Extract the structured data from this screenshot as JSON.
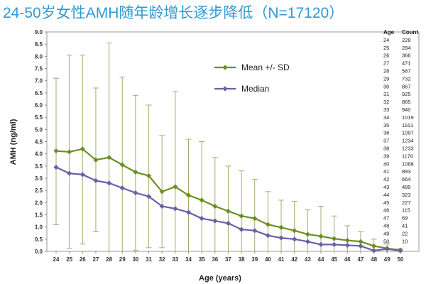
{
  "title": "24-50岁女性AMH随年龄增长逐步降低（N=17120）",
  "chart_data": {
    "type": "line",
    "xlabel": "Age (years)",
    "ylabel": "AMH (ng/ml)",
    "ylim": [
      0,
      9
    ],
    "yticks": [
      "0.0",
      "0.5",
      "1.0",
      "1.5",
      "2.0",
      "2.5",
      "3.0",
      "3.5",
      "4.0",
      "4.5",
      "5.0",
      "5.5",
      "6.0",
      "6.5",
      "7.0",
      "7.5",
      "8.0",
      "8.5",
      "9.0"
    ],
    "x": [
      24,
      25,
      26,
      27,
      28,
      29,
      30,
      31,
      32,
      33,
      34,
      35,
      36,
      37,
      38,
      39,
      40,
      41,
      42,
      43,
      44,
      45,
      46,
      47,
      48,
      49,
      50
    ],
    "series": [
      {
        "name": "Mean +/- SD",
        "color": "#6b8f23",
        "marker": "diamond",
        "values": [
          4.12,
          4.08,
          4.2,
          3.75,
          3.85,
          3.55,
          3.25,
          3.1,
          2.45,
          2.65,
          2.3,
          2.1,
          1.85,
          1.65,
          1.45,
          1.35,
          1.1,
          0.98,
          0.85,
          0.7,
          0.62,
          0.52,
          0.45,
          0.4,
          0.22,
          0.12,
          0.05
        ],
        "sd_upper": [
          7.1,
          8.05,
          8.05,
          6.7,
          8.55,
          7.15,
          6.4,
          6.0,
          4.75,
          6.55,
          4.6,
          4.5,
          3.85,
          3.5,
          3.3,
          2.95,
          2.45,
          2.1,
          2.05,
          1.7,
          1.85,
          1.45,
          1.05,
          0.8,
          0.5,
          0.3,
          0.12
        ],
        "sd_lower": [
          1.1,
          0.12,
          0.3,
          0.8,
          0.0,
          0.0,
          0.05,
          0.15,
          0.15,
          0.0,
          0.0,
          0.0,
          0.0,
          0.0,
          0.0,
          0.0,
          0.0,
          0.0,
          0.0,
          0.0,
          0.0,
          0.0,
          0.0,
          0.0,
          0.0,
          0.0,
          0.0
        ]
      },
      {
        "name": "Median",
        "color": "#6a5fa8",
        "marker": "diamond",
        "values": [
          3.45,
          3.2,
          3.15,
          2.9,
          2.8,
          2.6,
          2.4,
          2.25,
          1.85,
          1.75,
          1.6,
          1.35,
          1.25,
          1.15,
          0.9,
          0.85,
          0.65,
          0.55,
          0.5,
          0.4,
          0.28,
          0.28,
          0.25,
          0.22,
          0.03,
          0.1,
          0.02
        ]
      }
    ],
    "legend": "upper-center",
    "grid": false
  },
  "count_table": {
    "headers": [
      "Age",
      "Count"
    ],
    "rows": [
      [
        "24",
        "228"
      ],
      [
        "25",
        "284"
      ],
      [
        "26",
        "366"
      ],
      [
        "27",
        "471"
      ],
      [
        "28",
        "587"
      ],
      [
        "29",
        "732"
      ],
      [
        "30",
        "867"
      ],
      [
        "31",
        "925"
      ],
      [
        "32",
        "865"
      ],
      [
        "33",
        "940"
      ],
      [
        "34",
        "1019"
      ],
      [
        "35",
        "1161"
      ],
      [
        "36",
        "1097"
      ],
      [
        "37",
        "1234"
      ],
      [
        "38",
        "1233"
      ],
      [
        "39",
        "1170"
      ],
      [
        "40",
        "1088"
      ],
      [
        "41",
        "893"
      ],
      [
        "42",
        "664"
      ],
      [
        "43",
        "489"
      ],
      [
        "44",
        "323"
      ],
      [
        "45",
        "227"
      ],
      [
        "46",
        "115"
      ],
      [
        "47",
        "69"
      ],
      [
        "48",
        "41"
      ],
      [
        "49",
        "22"
      ],
      [
        "50",
        "10"
      ]
    ]
  }
}
